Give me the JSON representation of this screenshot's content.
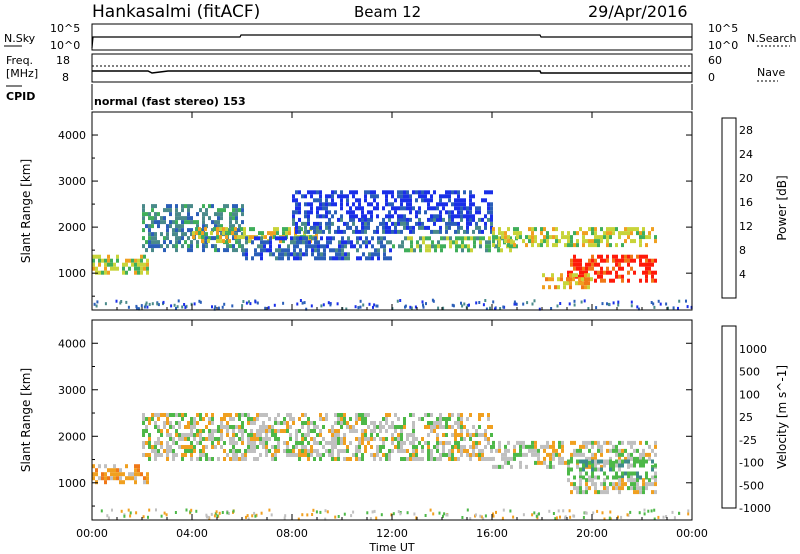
{
  "header": {
    "station": "Hankasalmi (fitACF)",
    "beam": "Beam 12",
    "date": "29/Apr/2016"
  },
  "top_panels": {
    "nsky_label": "N.Sky",
    "nsky_tick_top": "10^5",
    "nsky_tick_bottom": "10^0",
    "nsearch_label": "N.Search",
    "nsearch_tick_top": "10^5",
    "nsearch_tick_bottom": "10^0",
    "freq_label_1": "Freq.",
    "freq_label_2": "[MHz]",
    "freq_tick_top": "18",
    "freq_tick_bottom": "8",
    "nave_label": "Nave",
    "nave_tick_top": "60",
    "nave_tick_bottom": "0",
    "cpid_label": "CPID",
    "cpid_value": "normal (fast stereo) 153"
  },
  "chart_data": [
    {
      "type": "heatmap",
      "panel": "power",
      "xlabel": "Time UT",
      "ylabel": "Slant Range [km]",
      "x_ticks": [
        "00:00",
        "04:00",
        "08:00",
        "12:00",
        "16:00",
        "20:00",
        "00:00"
      ],
      "y_ticks": [
        1000,
        2000,
        3000,
        4000
      ],
      "ylim": [
        200,
        4500
      ],
      "xlim_hours": [
        0,
        24
      ],
      "colorbar_label": "Power [dB]",
      "colorbar_ticks": [
        4,
        8,
        12,
        16,
        20,
        24,
        28
      ],
      "colorbar_range": [
        0,
        30
      ],
      "colors": [
        "#1a2fe8",
        "#2b5fb8",
        "#4a8a8a",
        "#3fae5a",
        "#c8d43a",
        "#f0a020",
        "#f07818",
        "#ff1a0a"
      ],
      "echo_bands": [
        {
          "t0": 0.0,
          "t1": 2.2,
          "r0": 1000,
          "r1": 1400,
          "level": 4
        },
        {
          "t0": 2.0,
          "t1": 6.0,
          "r0": 1500,
          "r1": 2500,
          "level": 2
        },
        {
          "t0": 4.0,
          "t1": 9.0,
          "r0": 1700,
          "r1": 2000,
          "level": 4
        },
        {
          "t0": 6.0,
          "t1": 12.0,
          "r0": 1300,
          "r1": 1800,
          "level": 1
        },
        {
          "t0": 8.0,
          "t1": 16.0,
          "r0": 1900,
          "r1": 2200,
          "level": 1
        },
        {
          "t0": 12.0,
          "t1": 17.0,
          "r0": 1500,
          "r1": 1800,
          "level": 3
        },
        {
          "t0": 16.0,
          "t1": 22.5,
          "r0": 1600,
          "r1": 2000,
          "level": 4
        },
        {
          "t0": 19.0,
          "t1": 22.5,
          "r0": 800,
          "r1": 1400,
          "level": 7
        },
        {
          "t0": 18.0,
          "t1": 20.0,
          "r0": 700,
          "r1": 1000,
          "level": 5
        },
        {
          "t0": 8.0,
          "t1": 16.0,
          "r0": 2200,
          "r1": 2800,
          "level": 0
        }
      ]
    },
    {
      "type": "heatmap",
      "panel": "velocity",
      "xlabel": "Time UT",
      "ylabel": "Slant Range [km]",
      "x_ticks": [
        "00:00",
        "04:00",
        "08:00",
        "12:00",
        "16:00",
        "20:00",
        "00:00"
      ],
      "y_ticks": [
        1000,
        2000,
        3000,
        4000
      ],
      "ylim": [
        200,
        4500
      ],
      "xlim_hours": [
        0,
        24
      ],
      "colorbar_label": "Velocity [m s^-1]",
      "colorbar_ticks": [
        "1000",
        "500",
        "100",
        "25",
        "-25",
        "-100",
        "-500",
        "-1000"
      ],
      "colors": [
        "#1a2fe8",
        "#2a5fb0",
        "#3e8a8a",
        "#4db848",
        "#c0c0c0",
        "#f0a020",
        "#f07818",
        "#ff1a0a"
      ],
      "ground_scatter_color": "#c0c0c0",
      "echo_bands": [
        {
          "t0": 0.0,
          "t1": 2.2,
          "r0": 1000,
          "r1": 1400,
          "level": 5
        },
        {
          "t0": 2.0,
          "t1": 16.0,
          "r0": 1500,
          "r1": 2500,
          "level": 4
        },
        {
          "t0": 16.0,
          "t1": 22.5,
          "r0": 1300,
          "r1": 1900,
          "level": 4
        },
        {
          "t0": 19.0,
          "t1": 22.5,
          "r0": 1100,
          "r1": 1500,
          "level": 3
        },
        {
          "t0": 19.0,
          "t1": 22.5,
          "r0": 800,
          "r1": 1100,
          "level": 4
        }
      ]
    }
  ]
}
